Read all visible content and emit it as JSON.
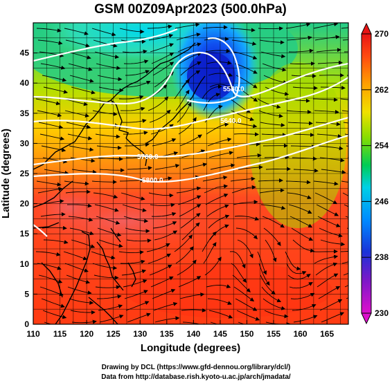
{
  "title": "GSM 00Z09Apr2023 (500.0hPa)",
  "x_axis": {
    "label": "Longitude (degrees)",
    "ticks": [
      "110",
      "115",
      "120",
      "125",
      "130",
      "135",
      "140",
      "145",
      "150",
      "155",
      "160",
      "165"
    ]
  },
  "y_axis": {
    "label": "Latitude (degrees)",
    "ticks": [
      "0",
      "5",
      "10",
      "15",
      "20",
      "25",
      "30",
      "35",
      "40",
      "45"
    ]
  },
  "colorbar": {
    "ticks": [
      "230",
      "238",
      "246",
      "254",
      "262",
      "270"
    ],
    "colors": [
      "#cc00cc",
      "#3333cc",
      "#0077ff",
      "#00d2ff",
      "#00cc66",
      "#aadd00",
      "#ffd800",
      "#ff8800",
      "#ff3300",
      "#e81515"
    ]
  },
  "contour_labels": [
    "5700.0",
    "5800.0",
    "5580.0",
    "5640.0"
  ],
  "credits": {
    "line1": "Drawing by DCL (https://www.gfd-dennou.org/library/dcl/)",
    "line2": "Data from http://database.rish.kyoto-u.ac.jp/arch/jmadata/"
  }
}
